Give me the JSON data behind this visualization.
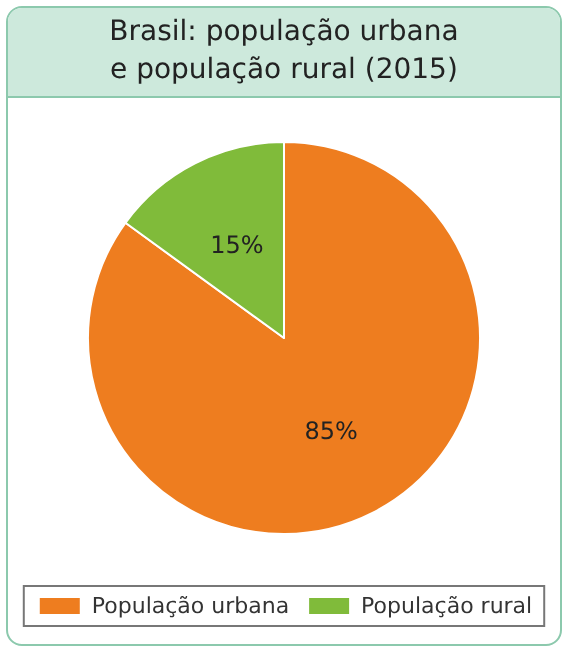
{
  "chart_data": {
    "type": "pie",
    "title": "Brasil: população urbana\ne população rural (2015)",
    "categories": [
      "População urbana",
      "População rural"
    ],
    "values": [
      85,
      15
    ],
    "colors": [
      "#ee7d1f",
      "#80bb3a"
    ],
    "value_labels": [
      "85%",
      "15%"
    ],
    "legend": "bottom"
  }
}
